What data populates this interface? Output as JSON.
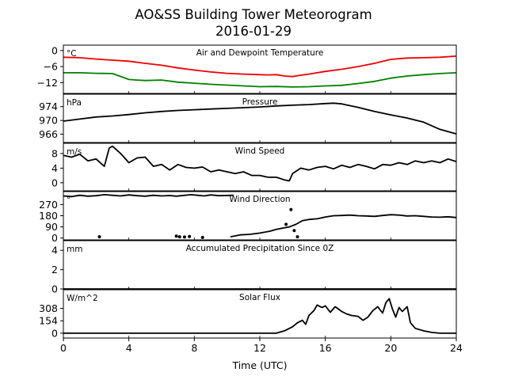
{
  "title": "AO&SS Building Tower Meteorogram",
  "subtitle": "2016-01-29",
  "chart_data": {
    "type": "line",
    "x_axis": {
      "label": "Time (UTC)",
      "range": [
        0,
        24
      ],
      "ticks": [
        0,
        4,
        8,
        12,
        16,
        20,
        24
      ]
    },
    "panels": [
      {
        "title": "Air and Dewpoint Temperature",
        "unit": "°C",
        "ylim": [
          -16,
          2
        ],
        "yticks": [
          0,
          -6,
          -12
        ],
        "ytick_labels": [
          "0",
          "−6",
          "−12"
        ],
        "series": [
          {
            "color": "#ee0000",
            "x": [
              0,
              1,
              2,
              3,
              4,
              5,
              6,
              7,
              8,
              9,
              10,
              11,
              12,
              12.5,
              13,
              13.5,
              14,
              14.5,
              15,
              16,
              17,
              18,
              19,
              20,
              21,
              22,
              23,
              24
            ],
            "y": [
              -2.5,
              -2.7,
              -3.2,
              -3.6,
              -4.0,
              -4.8,
              -5.5,
              -6.5,
              -7.3,
              -8.0,
              -8.5,
              -8.8,
              -9.0,
              -9.1,
              -9.0,
              -9.5,
              -9.7,
              -9.2,
              -8.8,
              -7.8,
              -7.0,
              -6.0,
              -4.8,
              -3.3,
              -2.8,
              -2.7,
              -2.5,
              -2.1
            ]
          },
          {
            "color": "#008000",
            "x": [
              0,
              1,
              2,
              3,
              4,
              4.5,
              5,
              6,
              7,
              8,
              9,
              10,
              11,
              12,
              13,
              14,
              15,
              16,
              17,
              18,
              19,
              20,
              21,
              22,
              23,
              24
            ],
            "y": [
              -8.3,
              -8.3,
              -8.5,
              -8.6,
              -10.8,
              -11.0,
              -11.2,
              -11.0,
              -11.8,
              -12.2,
              -12.6,
              -12.9,
              -13.2,
              -13.5,
              -13.4,
              -13.6,
              -13.5,
              -13.2,
              -13.0,
              -12.3,
              -11.5,
              -10.3,
              -9.5,
              -9.0,
              -8.6,
              -8.3
            ]
          }
        ]
      },
      {
        "title": "Pressure",
        "unit": "hPa",
        "ylim": [
          963.6,
          977.6
        ],
        "yticks": [
          974,
          970,
          966
        ],
        "ytick_labels": [
          "974",
          "970",
          "966"
        ],
        "series": [
          {
            "color": "#000000",
            "x": [
              0,
              1,
              2,
              3,
              4,
              5,
              6,
              7,
              8,
              9,
              10,
              11,
              12,
              13,
              14,
              15,
              16,
              16.5,
              17,
              18,
              19,
              20,
              21,
              22,
              23,
              24
            ],
            "y": [
              969.8,
              970.4,
              971.0,
              971.3,
              971.7,
              972.2,
              972.6,
              972.9,
              973.1,
              973.3,
              973.5,
              973.7,
              973.9,
              974.2,
              974.4,
              974.6,
              974.9,
              975.0,
              974.8,
              973.8,
              972.6,
              971.6,
              970.7,
              969.5,
              967.4,
              966.1
            ]
          }
        ]
      },
      {
        "title": "Wind Speed",
        "unit": "m/s",
        "ylim": [
          -2.2,
          10.8
        ],
        "yticks": [
          8,
          4,
          0
        ],
        "ytick_labels": [
          "8",
          "4",
          "0"
        ],
        "series": [
          {
            "color": "#000000",
            "x": [
              0,
              0.5,
              1,
              1.5,
              2,
              2.5,
              2.8,
              3,
              3.5,
              4,
              4.5,
              5,
              5.5,
              6,
              6.5,
              7,
              7.5,
              8,
              8.5,
              9,
              9.5,
              10,
              10.5,
              11,
              11.5,
              12,
              12.5,
              13,
              13.5,
              13.8,
              14,
              14.5,
              15,
              15.5,
              16,
              16.5,
              17,
              17.5,
              18,
              18.5,
              19,
              19.5,
              20,
              20.5,
              21,
              21.5,
              22,
              22.5,
              23,
              23.5,
              24
            ],
            "y": [
              7.5,
              7.0,
              7.8,
              6.0,
              6.5,
              4.5,
              9.5,
              10.0,
              8.0,
              5.5,
              6.8,
              7.0,
              4.5,
              5.0,
              3.5,
              5.0,
              4.2,
              4.0,
              4.3,
              3.0,
              3.5,
              3.0,
              2.5,
              3.0,
              2.0,
              2.0,
              1.5,
              1.5,
              0.8,
              0.5,
              2.5,
              4.0,
              3.5,
              4.2,
              4.5,
              3.8,
              4.8,
              4.2,
              5.0,
              4.5,
              3.8,
              5.0,
              4.8,
              5.5,
              5.0,
              6.0,
              5.5,
              6.0,
              5.5,
              6.5,
              5.8
            ]
          }
        ]
      },
      {
        "title": "Wind Direction",
        "unit": "°",
        "ylim": [
          -15,
          375
        ],
        "yticks": [
          270,
          180,
          90,
          0
        ],
        "ytick_labels": [
          "270",
          "180",
          "90",
          "0"
        ],
        "series": [
          {
            "color": "#000000",
            "x": [
              0,
              0.5,
              1,
              1.5,
              2,
              2.5,
              3,
              3.5,
              4,
              4.5,
              5,
              5.5,
              6,
              6.5,
              6.9,
              7.8,
              8.2,
              8.6,
              9,
              9.5,
              10.4
            ],
            "y": [
              340,
              335,
              345,
              338,
              342,
              350,
              345,
              340,
              348,
              342,
              338,
              345,
              340,
              343,
              338,
              350,
              345,
              340,
              348,
              342,
              345
            ]
          },
          {
            "color": "#000000",
            "x": [
              10.2,
              10.8,
              11.4,
              12,
              12.6,
              13,
              13.4,
              13.8,
              14.2,
              14.6,
              15,
              15.5,
              16,
              16.5,
              17,
              17.5,
              18,
              18.5,
              19,
              19.5,
              20,
              20.5,
              21,
              21.5,
              22,
              22.5,
              23,
              23.5,
              24
            ],
            "y": [
              10,
              25,
              30,
              40,
              55,
              70,
              80,
              90,
              110,
              140,
              150,
              155,
              170,
              180,
              182,
              185,
              180,
              178,
              175,
              182,
              188,
              185,
              178,
              180,
              175,
              170,
              168,
              172,
              165
            ]
          }
        ],
        "points": {
          "x": [
            2.2,
            6.9,
            7.1,
            7.4,
            7.7,
            8.5,
            13.6,
            13.9,
            14.1,
            14.3
          ],
          "y": [
            10,
            15,
            10,
            8,
            12,
            5,
            110,
            230,
            60,
            10
          ]
        }
      },
      {
        "title": "Accumulated Precipitation Since 0Z",
        "unit": "mm",
        "ylim": [
          0,
          5
        ],
        "yticks": [
          4,
          2,
          0
        ],
        "ytick_labels": [
          "4",
          "2",
          "0"
        ],
        "series": [
          {
            "color": "#000000",
            "x": [
              0,
              24
            ],
            "y": [
              0,
              0
            ]
          }
        ]
      },
      {
        "title": "Solar Flux",
        "unit": "W/m^2",
        "ylim": [
          -60,
          540
        ],
        "yticks": [
          308,
          154,
          0
        ],
        "ytick_labels": [
          "308",
          "154",
          "0"
        ],
        "series": [
          {
            "color": "#000000",
            "x": [
              0,
              13,
              13.5,
              14,
              14.3,
              14.6,
              14.8,
              15,
              15.3,
              15.5,
              15.8,
              16,
              16.3,
              16.6,
              17,
              17.3,
              17.6,
              18,
              18.3,
              18.6,
              18.9,
              19.2,
              19.5,
              19.7,
              19.9,
              20.1,
              20.3,
              20.5,
              20.7,
              21,
              21.2,
              21.5,
              22,
              22.5,
              23,
              24
            ],
            "y": [
              0,
              0,
              30,
              80,
              130,
              160,
              110,
              220,
              280,
              350,
              320,
              340,
              260,
              330,
              270,
              240,
              220,
              210,
              160,
              200,
              280,
              330,
              250,
              380,
              430,
              300,
              200,
              320,
              270,
              330,
              130,
              60,
              30,
              10,
              0,
              0
            ]
          }
        ]
      }
    ]
  }
}
